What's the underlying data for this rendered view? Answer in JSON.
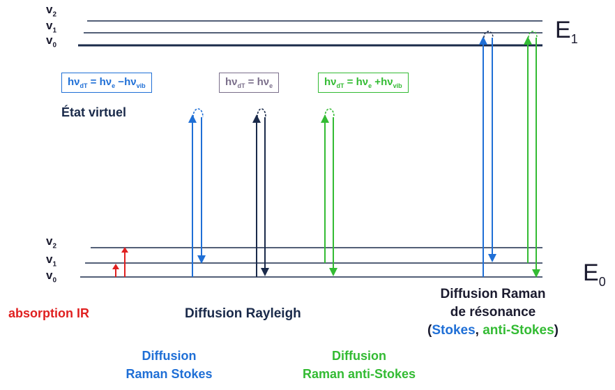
{
  "levels": {
    "upper": {
      "energy": "E",
      "energy_sub": "1",
      "v2": "v",
      "v2_sub": "2",
      "v1": "v",
      "v1_sub": "1",
      "v0": "v",
      "v0_sub": "0"
    },
    "lower": {
      "energy": "E",
      "energy_sub": "0",
      "v2": "v",
      "v2_sub": "2",
      "v1": "v",
      "v1_sub": "1",
      "v0": "v",
      "v0_sub": "0"
    }
  },
  "virtual_state": "État virtuel",
  "formulas": {
    "stokes": {
      "lhs": "hν",
      "lhs_sub": "dT",
      "mid": " = hν",
      "mid_sub": "e",
      "op": " −hν",
      "op_sub": "vib",
      "color": "#1f6fd6"
    },
    "rayleigh": {
      "lhs": "hν",
      "lhs_sub": "dT",
      "mid": " = hν",
      "mid_sub": "e",
      "color": "#7a6e8a"
    },
    "antistokes": {
      "lhs": "hν",
      "lhs_sub": "dT",
      "mid": " = hν",
      "mid_sub": "e",
      "op": " +hν",
      "op_sub": "vib",
      "color": "#33bb33"
    }
  },
  "labels": {
    "absorption": "absorption IR",
    "rayleigh": "Diffusion Rayleigh",
    "stokes_line1": "Diffusion",
    "stokes_line2": "Raman Stokes",
    "antistokes_line1": "Diffusion",
    "antistokes_line2": "Raman anti-Stokes",
    "resonance_line1": "Diffusion Raman",
    "resonance_line2": "de résonance",
    "resonance_open": "(",
    "resonance_stokes": "Stokes",
    "resonance_comma": ", ",
    "resonance_antistokes": "anti-Stokes",
    "resonance_close": ")"
  },
  "colors": {
    "dark": "#1a2a4a",
    "red": "#e02020",
    "blue": "#1f6fd6",
    "green": "#33bb33",
    "purple": "#7a6e8a"
  }
}
